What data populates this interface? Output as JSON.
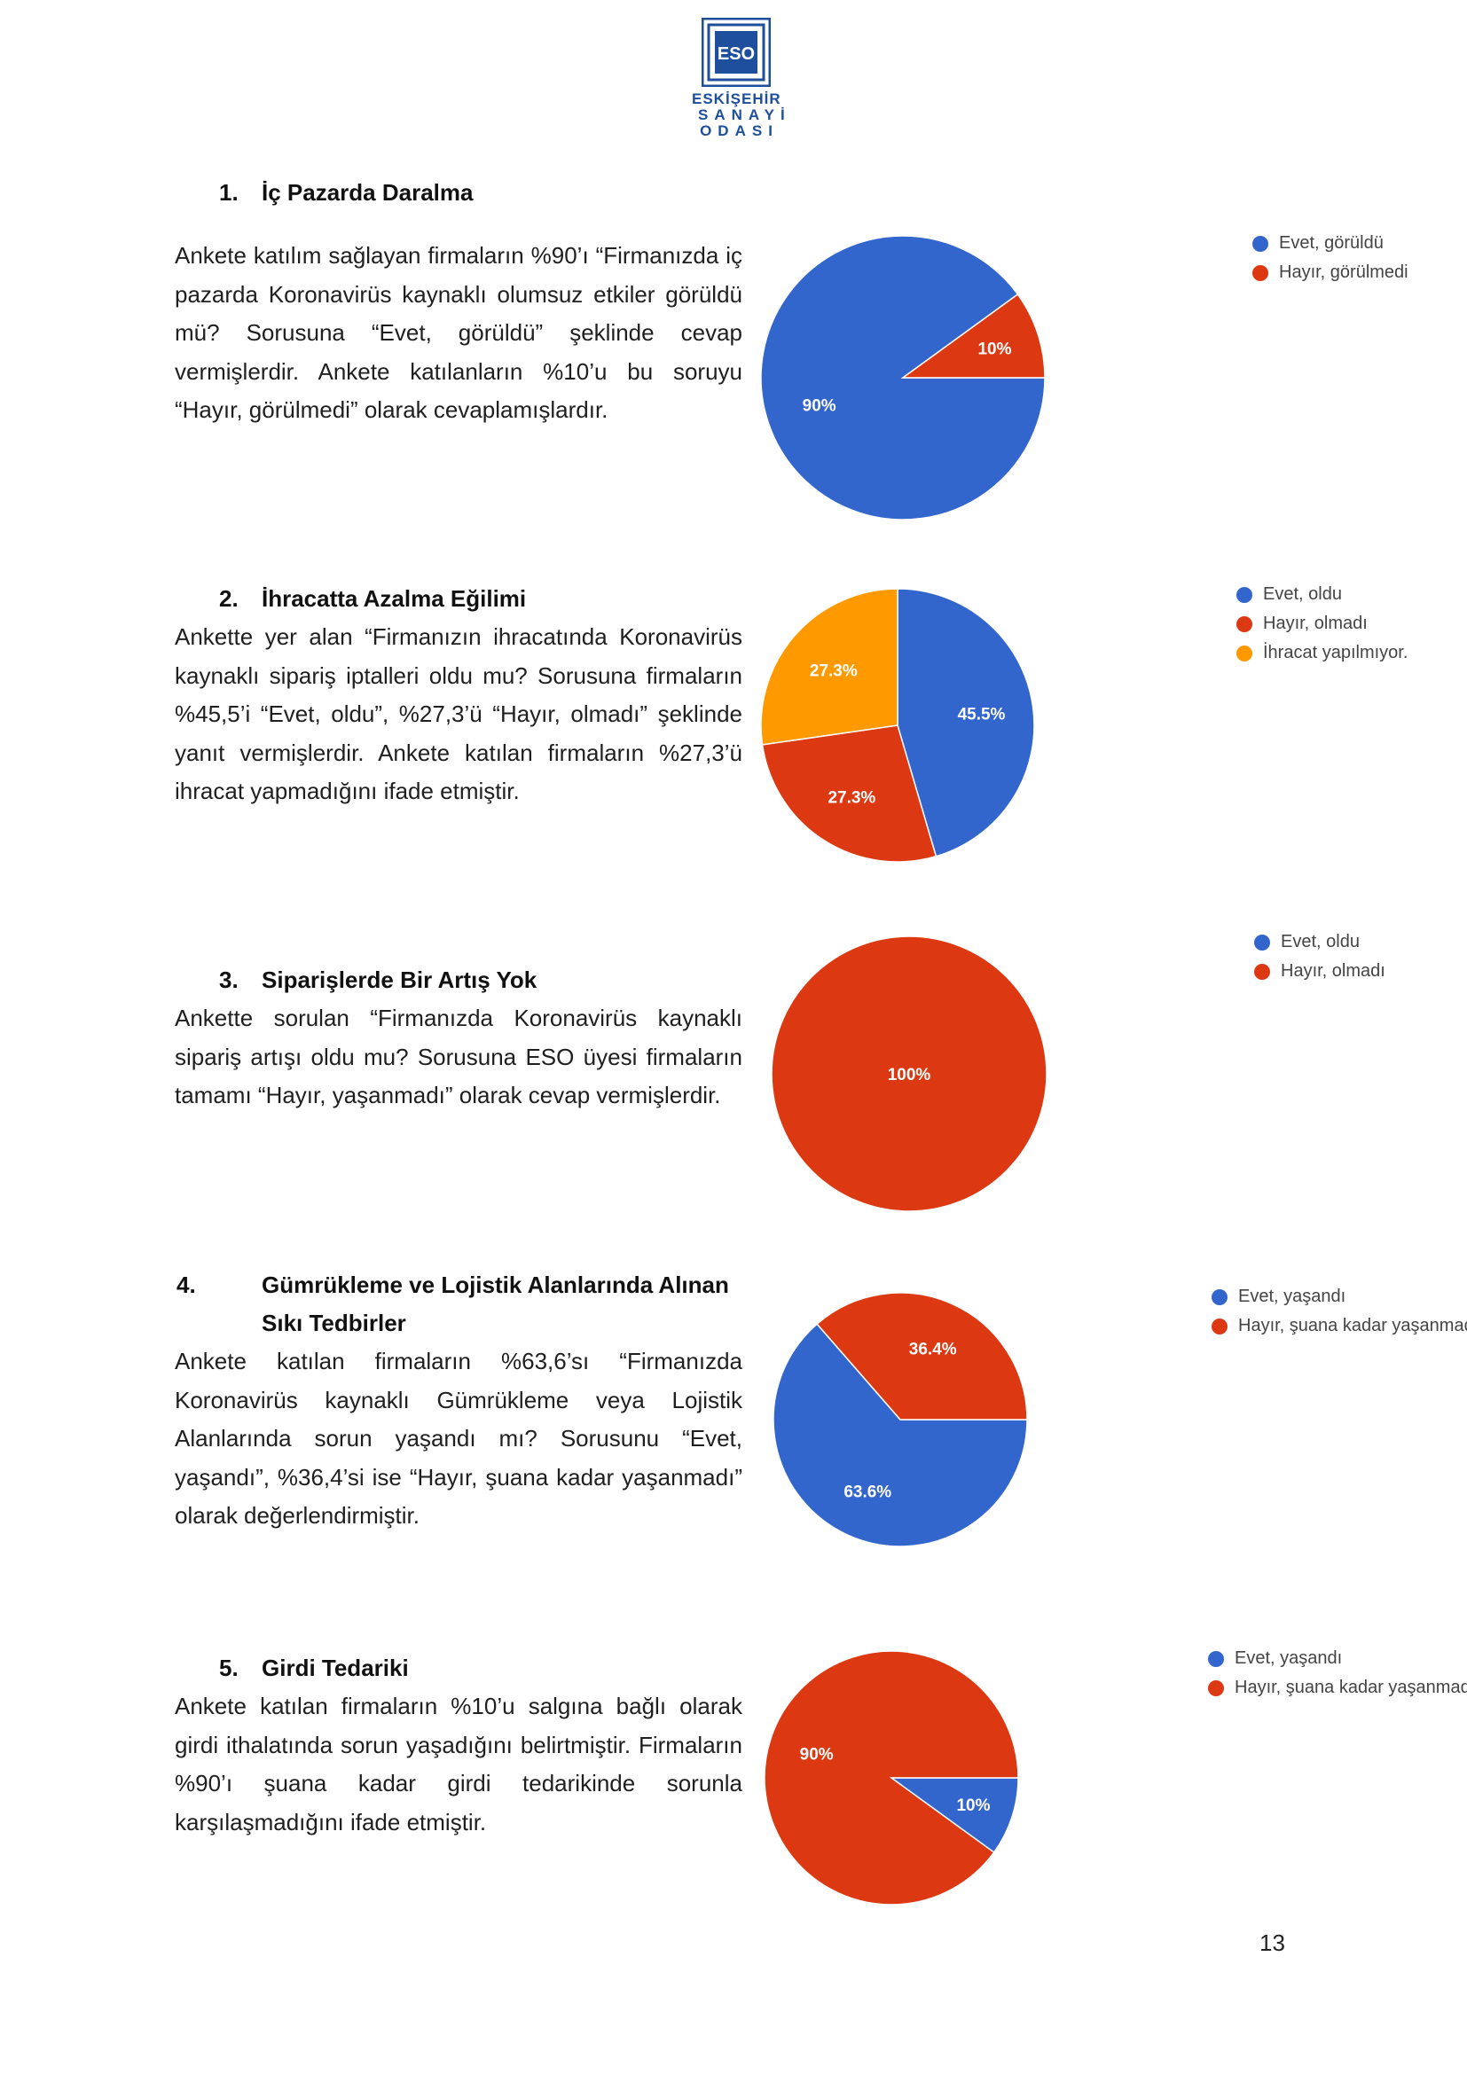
{
  "logo": {
    "abbr": "ESO",
    "line1": "ESKİŞEHİR",
    "line2": "SANAYİ",
    "line3": "ODASI"
  },
  "colors": {
    "blue": "#3366cc",
    "red": "#dc3912",
    "orange": "#ff9900",
    "logo_blue": "#1e4f9c"
  },
  "sections": [
    {
      "number": "1.",
      "title": "İç Pazarda Daralma",
      "paragraph": "Ankete katılım sağlayan firmaların %90’ı “Firmanızda iç pazarda Koronavirüs kaynaklı olumsuz etkiler görüldü mü? Sorusuna “Evet, görüldü” şeklinde cevap vermişlerdir. Ankete katılanların %10’u bu soruyu “Hayır, görülmedi” olarak cevaplamışlardır.",
      "legend": [
        "Evet, görüldü",
        "Hayır, görülmedi"
      ]
    },
    {
      "number": "2.",
      "title": "İhracatta Azalma Eğilimi",
      "paragraph": "Ankette yer alan “Firmanızın ihracatında Koronavirüs kaynaklı sipariş iptalleri oldu mu? Sorusuna firmaların %45,5’i “Evet, oldu”, %27,3’ü “Hayır, olmadı” şeklinde yanıt vermişlerdir. Ankete katılan firmaların %27,3’ü ihracat yapmadığını ifade etmiştir.",
      "legend": [
        "Evet, oldu",
        "Hayır, olmadı",
        "İhracat yapılmıyor."
      ]
    },
    {
      "number": "3.",
      "title": "Siparişlerde Bir Artış Yok",
      "paragraph": "Ankette sorulan “Firmanızda Koronavirüs kaynaklı sipariş artışı oldu mu? Sorusuna ESO üyesi firmaların tamamı “Hayır, yaşanmadı” olarak cevap vermişlerdir.",
      "legend": [
        "Evet, oldu",
        "Hayır, olmadı"
      ]
    },
    {
      "number": "4.",
      "title": "Gümrükleme ve Lojistik Alanlarında Alınan Sıkı Tedbirler",
      "paragraph": "Ankete katılan firmaların %63,6’sı “Firmanızda Koronavirüs kaynaklı Gümrükleme veya Lojistik Alanlarında sorun yaşandı mı? Sorusunu “Evet, yaşandı”, %36,4’si ise “Hayır, şuana kadar yaşanmadı” olarak değerlendirmiştir.",
      "legend": [
        "Evet, yaşandı",
        "Hayır, şuana kadar yaşanmadı"
      ]
    },
    {
      "number": "5.",
      "title": "Girdi Tedariki",
      "paragraph": "Ankete katılan firmaların %10’u salgına bağlı olarak girdi ithalatında sorun yaşadığını belirtmiştir. Firmaların %90’ı şuana kadar girdi tedarikinde sorunla karşılaşmadığını ifade etmiştir.",
      "legend": [
        "Evet, yaşandı",
        "Hayır, şuana kadar yaşanmadı"
      ]
    }
  ],
  "chart_data": [
    {
      "type": "pie",
      "title": "",
      "categories": [
        "Evet, görüldü",
        "Hayır, görülmedi"
      ],
      "values": [
        90,
        10
      ],
      "labels": [
        "90%",
        "10%"
      ],
      "colors": [
        "#3366cc",
        "#dc3912"
      ],
      "legend_position": "top-right"
    },
    {
      "type": "pie",
      "title": "",
      "categories": [
        "Evet, oldu",
        "Hayır, olmadı",
        "İhracat yapılmıyor."
      ],
      "values": [
        45.5,
        27.3,
        27.3
      ],
      "labels": [
        "45.5%",
        "27.3%",
        "27.3%"
      ],
      "colors": [
        "#3366cc",
        "#dc3912",
        "#ff9900"
      ],
      "legend_position": "top-right"
    },
    {
      "type": "pie",
      "title": "",
      "categories": [
        "Evet, oldu",
        "Hayır, olmadı"
      ],
      "values": [
        0,
        100
      ],
      "labels": [
        "",
        "100%"
      ],
      "colors": [
        "#3366cc",
        "#dc3912"
      ],
      "legend_position": "top-right"
    },
    {
      "type": "pie",
      "title": "",
      "categories": [
        "Evet, yaşandı",
        "Hayır, şuana kadar yaşanmadı"
      ],
      "values": [
        63.6,
        36.4
      ],
      "labels": [
        "63.6%",
        "36.4%"
      ],
      "colors": [
        "#3366cc",
        "#dc3912"
      ],
      "legend_position": "top-right"
    },
    {
      "type": "pie",
      "title": "",
      "categories": [
        "Evet, yaşandı",
        "Hayır, şuana kadar yaşanmadı"
      ],
      "values": [
        10,
        90
      ],
      "labels": [
        "10%",
        "90%"
      ],
      "colors": [
        "#3366cc",
        "#dc3912"
      ],
      "legend_position": "top-right"
    }
  ],
  "page_number": "13"
}
